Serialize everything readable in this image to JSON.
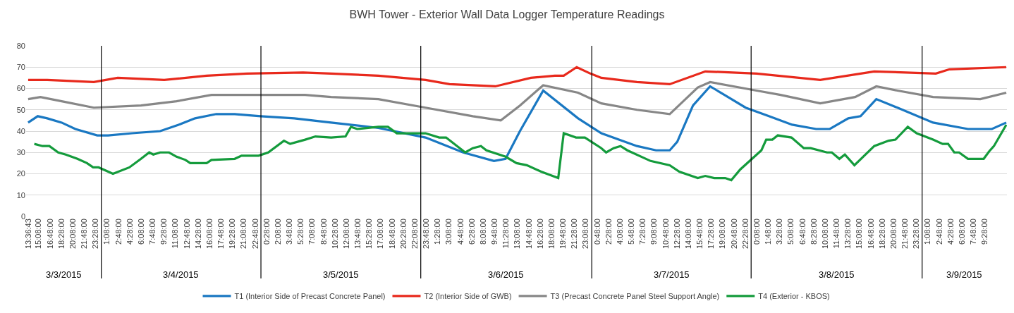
{
  "chart_data": {
    "type": "line",
    "title": "BWH Tower - Exterior Wall Data Logger Temperature Readings",
    "xlim": [
      "2015-03-03T13:18",
      "2015-03-09T12:42"
    ],
    "ylim": [
      0,
      80
    ],
    "yticks": [
      0,
      10,
      20,
      30,
      40,
      50,
      60,
      70,
      80
    ],
    "xticks": [
      {
        "value": "2015-03-03T13:36:43",
        "label": "13:36:43"
      },
      {
        "value": "2015-03-03T15:08",
        "label": "15:08:00"
      },
      {
        "value": "2015-03-03T16:48",
        "label": "16:48:00"
      },
      {
        "value": "2015-03-03T18:28",
        "label": "18:28:00"
      },
      {
        "value": "2015-03-03T20:08",
        "label": "20:08:00"
      },
      {
        "value": "2015-03-03T21:48",
        "label": "21:48:00"
      },
      {
        "value": "2015-03-03T23:28",
        "label": "23:28:00"
      },
      {
        "value": "2015-03-04T01:08",
        "label": "1:08:00"
      },
      {
        "value": "2015-03-04T02:48",
        "label": "2:48:00"
      },
      {
        "value": "2015-03-04T04:28",
        "label": "4:28:00"
      },
      {
        "value": "2015-03-04T06:08",
        "label": "6:08:00"
      },
      {
        "value": "2015-03-04T07:48",
        "label": "7:48:00"
      },
      {
        "value": "2015-03-04T09:28",
        "label": "9:28:00"
      },
      {
        "value": "2015-03-04T11:08",
        "label": "11:08:00"
      },
      {
        "value": "2015-03-04T12:48",
        "label": "12:48:00"
      },
      {
        "value": "2015-03-04T14:28",
        "label": "14:28:00"
      },
      {
        "value": "2015-03-04T16:08",
        "label": "16:08:00"
      },
      {
        "value": "2015-03-04T17:48",
        "label": "17:48:00"
      },
      {
        "value": "2015-03-04T19:28",
        "label": "19:28:00"
      },
      {
        "value": "2015-03-04T21:08",
        "label": "21:08:00"
      },
      {
        "value": "2015-03-04T22:48",
        "label": "22:48:00"
      },
      {
        "value": "2015-03-05T00:28",
        "label": "0:28:00"
      },
      {
        "value": "2015-03-05T02:08",
        "label": "2:08:00"
      },
      {
        "value": "2015-03-05T03:48",
        "label": "3:48:00"
      },
      {
        "value": "2015-03-05T05:28",
        "label": "5:28:00"
      },
      {
        "value": "2015-03-05T07:08",
        "label": "7:08:00"
      },
      {
        "value": "2015-03-05T08:48",
        "label": "8:48:00"
      },
      {
        "value": "2015-03-05T10:28",
        "label": "10:28:00"
      },
      {
        "value": "2015-03-05T12:08",
        "label": "12:08:00"
      },
      {
        "value": "2015-03-05T13:48",
        "label": "13:48:00"
      },
      {
        "value": "2015-03-05T15:28",
        "label": "15:28:00"
      },
      {
        "value": "2015-03-05T17:08",
        "label": "17:08:00"
      },
      {
        "value": "2015-03-05T18:48",
        "label": "18:48:00"
      },
      {
        "value": "2015-03-05T20:28",
        "label": "20:28:00"
      },
      {
        "value": "2015-03-05T22:08",
        "label": "22:08:00"
      },
      {
        "value": "2015-03-05T23:48",
        "label": "23:48:00"
      },
      {
        "value": "2015-03-06T01:28",
        "label": "1:28:00"
      },
      {
        "value": "2015-03-06T03:08",
        "label": "3:08:00"
      },
      {
        "value": "2015-03-06T04:48",
        "label": "4:48:00"
      },
      {
        "value": "2015-03-06T06:28",
        "label": "6:28:00"
      },
      {
        "value": "2015-03-06T08:08",
        "label": "8:08:00"
      },
      {
        "value": "2015-03-06T09:48",
        "label": "9:48:00"
      },
      {
        "value": "2015-03-06T11:28",
        "label": "11:28:00"
      },
      {
        "value": "2015-03-06T13:08",
        "label": "13:08:00"
      },
      {
        "value": "2015-03-06T14:48",
        "label": "14:48:00"
      },
      {
        "value": "2015-03-06T16:28",
        "label": "16:28:00"
      },
      {
        "value": "2015-03-06T18:08",
        "label": "18:08:00"
      },
      {
        "value": "2015-03-06T19:48",
        "label": "19:48:00"
      },
      {
        "value": "2015-03-06T21:28",
        "label": "21:28:00"
      },
      {
        "value": "2015-03-06T23:08",
        "label": "23:08:00"
      },
      {
        "value": "2015-03-07T00:48",
        "label": "0:48:00"
      },
      {
        "value": "2015-03-07T02:28",
        "label": "2:28:00"
      },
      {
        "value": "2015-03-07T04:08",
        "label": "4:08:00"
      },
      {
        "value": "2015-03-07T05:48",
        "label": "5:48:00"
      },
      {
        "value": "2015-03-07T07:28",
        "label": "7:28:00"
      },
      {
        "value": "2015-03-07T09:08",
        "label": "9:08:00"
      },
      {
        "value": "2015-03-07T10:48",
        "label": "10:48:00"
      },
      {
        "value": "2015-03-07T12:28",
        "label": "12:28:00"
      },
      {
        "value": "2015-03-07T14:08",
        "label": "14:08:00"
      },
      {
        "value": "2015-03-07T15:48",
        "label": "15:48:00"
      },
      {
        "value": "2015-03-07T17:28",
        "label": "17:28:00"
      },
      {
        "value": "2015-03-07T19:08",
        "label": "19:08:00"
      },
      {
        "value": "2015-03-07T20:48",
        "label": "20:48:00"
      },
      {
        "value": "2015-03-07T22:28",
        "label": "22:28:00"
      },
      {
        "value": "2015-03-08T00:08",
        "label": "0:08:00"
      },
      {
        "value": "2015-03-08T01:48",
        "label": "1:48:00"
      },
      {
        "value": "2015-03-08T03:28",
        "label": "3:28:00"
      },
      {
        "value": "2015-03-08T05:08",
        "label": "5:08:00"
      },
      {
        "value": "2015-03-08T06:48",
        "label": "6:48:00"
      },
      {
        "value": "2015-03-08T08:28",
        "label": "8:28:00"
      },
      {
        "value": "2015-03-08T10:08",
        "label": "10:08:00"
      },
      {
        "value": "2015-03-08T11:48",
        "label": "11:48:00"
      },
      {
        "value": "2015-03-08T13:28",
        "label": "13:28:00"
      },
      {
        "value": "2015-03-08T15:08",
        "label": "15:08:00"
      },
      {
        "value": "2015-03-08T16:48",
        "label": "16:48:00"
      },
      {
        "value": "2015-03-08T18:28",
        "label": "18:28:00"
      },
      {
        "value": "2015-03-08T20:08",
        "label": "20:08:00"
      },
      {
        "value": "2015-03-08T21:48",
        "label": "21:48:00"
      },
      {
        "value": "2015-03-08T23:28",
        "label": "23:28:00"
      },
      {
        "value": "2015-03-09T01:08",
        "label": "1:08:00"
      },
      {
        "value": "2015-03-09T02:48",
        "label": "2:48:00"
      },
      {
        "value": "2015-03-09T04:28",
        "label": "4:28:00"
      },
      {
        "value": "2015-03-09T06:08",
        "label": "6:08:00"
      },
      {
        "value": "2015-03-09T07:48",
        "label": "7:48:00"
      },
      {
        "value": "2015-03-09T09:28",
        "label": "9:28:00"
      }
    ],
    "series": [
      {
        "name": "T1 (Interior Side of Precast Concrete Panel)",
        "color": "#1a78c2",
        "x": [
          "2015-03-03T13:36",
          "2015-03-03T15:00",
          "2015-03-03T16:24",
          "2015-03-03T18:30",
          "2015-03-03T20:30",
          "2015-03-03T23:42",
          "2015-03-04T01:18",
          "2015-03-04T04:48",
          "2015-03-04T08:54",
          "2015-03-04T11:36",
          "2015-03-04T14:00",
          "2015-03-04T17:06",
          "2015-03-04T19:48",
          "2015-03-04T23:36",
          "2015-03-05T04:30",
          "2015-03-05T09:54",
          "2015-03-05T16:48",
          "2015-03-05T23:42",
          "2015-03-06T05:12",
          "2015-03-06T09:42",
          "2015-03-06T11:24",
          "2015-03-06T13:30",
          "2015-03-06T16:54",
          "2015-03-06T22:00",
          "2015-03-07T01:24",
          "2015-03-07T06:36",
          "2015-03-07T09:24",
          "2015-03-07T11:24",
          "2015-03-07T12:30",
          "2015-03-07T14:48",
          "2015-03-07T17:18",
          "2015-03-07T19:24",
          "2015-03-07T22:30",
          "2015-03-08T01:54",
          "2015-03-08T05:18",
          "2015-03-08T08:48",
          "2015-03-08T10:48",
          "2015-03-08T13:30",
          "2015-03-08T15:18",
          "2015-03-08T17:36",
          "2015-03-08T20:42",
          "2015-03-09T01:54",
          "2015-03-09T07:00",
          "2015-03-09T10:30",
          "2015-03-09T12:36"
        ],
        "values": [
          44,
          47,
          46,
          44,
          41,
          38,
          38,
          39,
          40,
          43,
          46,
          48,
          48,
          47,
          46,
          44,
          41.5,
          37,
          30,
          26,
          27,
          40,
          59,
          46,
          39,
          33,
          31,
          31,
          35,
          52,
          61,
          57,
          51,
          47,
          43,
          41,
          41,
          46,
          47,
          55,
          51,
          44,
          41,
          41,
          44
        ]
      },
      {
        "name": "T2 (Interior Side of GWB)",
        "color": "#e8291c",
        "x": [
          "2015-03-03T13:36",
          "2015-03-03T16:24",
          "2015-03-03T23:12",
          "2015-03-04T02:42",
          "2015-03-04T09:30",
          "2015-03-04T15:42",
          "2015-03-04T21:36",
          "2015-03-05T05:48",
          "2015-03-05T09:54",
          "2015-03-05T16:48",
          "2015-03-05T23:42",
          "2015-03-06T03:12",
          "2015-03-06T09:54",
          "2015-03-06T15:06",
          "2015-03-06T18:36",
          "2015-03-06T19:54",
          "2015-03-06T21:48",
          "2015-03-06T23:48",
          "2015-03-07T01:24",
          "2015-03-07T06:36",
          "2015-03-07T11:24",
          "2015-03-07T16:36",
          "2015-03-08T00:06",
          "2015-03-08T09:24",
          "2015-03-08T17:18",
          "2015-03-09T02:18",
          "2015-03-09T04:18",
          "2015-03-09T12:36"
        ],
        "values": [
          64,
          64,
          63,
          65,
          64,
          66,
          67,
          67.5,
          67,
          66,
          64,
          62,
          61,
          65,
          66,
          66,
          70,
          67,
          65,
          63,
          62,
          68,
          67,
          64,
          68,
          67,
          69,
          70
        ]
      },
      {
        "name": "T3 (Precast Concrete Panel Steel Support Angle)",
        "color": "#878787",
        "x": [
          "2015-03-03T13:36",
          "2015-03-03T15:24",
          "2015-03-03T18:30",
          "2015-03-03T23:12",
          "2015-03-04T06:06",
          "2015-03-04T11:18",
          "2015-03-04T16:24",
          "2015-03-04T23:18",
          "2015-03-05T06:06",
          "2015-03-05T09:54",
          "2015-03-05T16:48",
          "2015-03-05T23:42",
          "2015-03-06T06:36",
          "2015-03-06T10:42",
          "2015-03-06T13:30",
          "2015-03-06T16:54",
          "2015-03-06T22:00",
          "2015-03-07T01:24",
          "2015-03-07T06:36",
          "2015-03-07T11:24",
          "2015-03-07T15:30",
          "2015-03-07T17:18",
          "2015-03-08T00:06",
          "2015-03-08T03:36",
          "2015-03-08T09:24",
          "2015-03-08T14:30",
          "2015-03-08T17:36",
          "2015-03-08T20:42",
          "2015-03-09T01:54",
          "2015-03-09T08:48",
          "2015-03-09T12:36"
        ],
        "values": [
          55,
          56,
          54,
          51,
          52,
          54,
          57,
          57,
          57,
          56,
          55,
          51,
          47,
          45,
          52,
          61.5,
          58,
          53,
          50,
          48,
          60.5,
          63,
          59,
          57,
          53,
          56,
          61,
          59,
          56,
          55,
          58
        ]
      },
      {
        "name": "T4 (Exterior - KBOS)",
        "color": "#149b3c",
        "x": [
          "2015-03-03T14:30",
          "2015-03-03T15:42",
          "2015-03-03T16:42",
          "2015-03-03T18:00",
          "2015-03-03T19:06",
          "2015-03-03T20:48",
          "2015-03-03T22:12",
          "2015-03-03T23:06",
          "2015-03-03T23:54",
          "2015-03-04T02:00",
          "2015-03-04T04:24",
          "2015-03-04T06:06",
          "2015-03-04T07:18",
          "2015-03-04T07:54",
          "2015-03-04T08:54",
          "2015-03-04T10:12",
          "2015-03-04T11:18",
          "2015-03-04T12:36",
          "2015-03-04T13:18",
          "2015-03-04T15:42",
          "2015-03-04T16:24",
          "2015-03-04T19:48",
          "2015-03-04T20:48",
          "2015-03-04T23:18",
          "2015-03-05T00:42",
          "2015-03-05T03:00",
          "2015-03-05T03:54",
          "2015-03-05T06:06",
          "2015-03-05T07:36",
          "2015-03-05T09:54",
          "2015-03-05T12:00",
          "2015-03-05T12:48",
          "2015-03-05T13:42",
          "2015-03-05T16:48",
          "2015-03-05T18:12",
          "2015-03-05T19:30",
          "2015-03-05T21:36",
          "2015-03-05T23:42",
          "2015-03-06T01:42",
          "2015-03-06T02:42",
          "2015-03-06T05:30",
          "2015-03-06T06:36",
          "2015-03-06T07:48",
          "2015-03-06T08:36",
          "2015-03-06T11:24",
          "2015-03-06T13:00",
          "2015-03-06T14:30",
          "2015-03-06T16:36",
          "2015-03-06T19:06",
          "2015-03-06T19:54",
          "2015-03-06T21:42",
          "2015-03-06T23:00",
          "2015-03-07T01:24",
          "2015-03-07T02:06",
          "2015-03-07T03:12",
          "2015-03-07T04:12",
          "2015-03-07T05:12",
          "2015-03-07T08:36",
          "2015-03-07T11:24",
          "2015-03-07T12:48",
          "2015-03-07T15:30",
          "2015-03-07T16:36",
          "2015-03-07T17:54",
          "2015-03-07T19:30",
          "2015-03-07T20:24",
          "2015-03-07T21:42",
          "2015-03-08T00:48",
          "2015-03-08T01:30",
          "2015-03-08T02:24",
          "2015-03-08T03:12",
          "2015-03-08T05:12",
          "2015-03-08T07:00",
          "2015-03-08T08:00",
          "2015-03-08T10:24",
          "2015-03-08T11:06",
          "2015-03-08T12:12",
          "2015-03-08T13:00",
          "2015-03-08T14:24",
          "2015-03-08T17:18",
          "2015-03-08T19:24",
          "2015-03-08T20:24",
          "2015-03-08T22:12",
          "2015-03-08T23:30",
          "2015-03-09T01:54",
          "2015-03-09T03:18",
          "2015-03-09T04:06",
          "2015-03-09T05:00",
          "2015-03-09T05:42",
          "2015-03-09T07:00",
          "2015-03-09T09:18",
          "2015-03-09T10:06",
          "2015-03-09T10:48",
          "2015-03-09T12:36"
        ],
        "values": [
          34,
          33,
          33,
          30,
          29,
          27,
          25,
          23,
          23,
          20,
          23,
          27,
          30,
          29,
          30,
          30,
          28,
          26.5,
          25,
          25,
          26.5,
          27,
          28.5,
          28.5,
          30,
          35.5,
          34,
          36,
          37.5,
          37,
          37.5,
          42,
          41,
          42,
          42,
          39,
          39,
          39,
          37,
          37,
          30,
          32,
          33,
          31,
          28,
          25,
          24,
          21,
          18,
          39,
          37,
          37,
          32,
          30,
          32,
          33,
          31,
          26,
          24,
          21,
          18,
          19,
          18,
          18,
          17,
          22,
          31,
          36,
          36,
          38,
          37,
          32,
          32,
          30,
          30,
          27,
          29,
          24,
          33,
          35.5,
          36,
          42,
          39,
          36,
          34,
          34,
          30,
          30,
          27,
          27,
          30.5,
          33,
          43
        ]
      }
    ],
    "ref_lines": [
      {
        "axis": "x",
        "value": "2015-03-04T00:18",
        "color": "#000000"
      },
      {
        "axis": "x",
        "value": "2015-03-04T23:38",
        "color": "#000000"
      },
      {
        "axis": "x",
        "value": "2015-03-05T23:00",
        "color": "#000000"
      },
      {
        "axis": "x",
        "value": "2015-03-07T00:00",
        "color": "#000000"
      },
      {
        "axis": "x",
        "value": "2015-03-07T23:18",
        "color": "#000000"
      },
      {
        "axis": "x",
        "value": "2015-03-09T00:18",
        "color": "#000000"
      }
    ],
    "annotations": [
      "3/3/2015",
      "3/4/2015",
      "3/5/2015",
      "3/6/2015",
      "3/7/2015",
      "3/8/2015",
      "3/9/2015"
    ],
    "grid": "y",
    "legend": "bottom",
    "marker": "none",
    "line_style": "solid"
  }
}
